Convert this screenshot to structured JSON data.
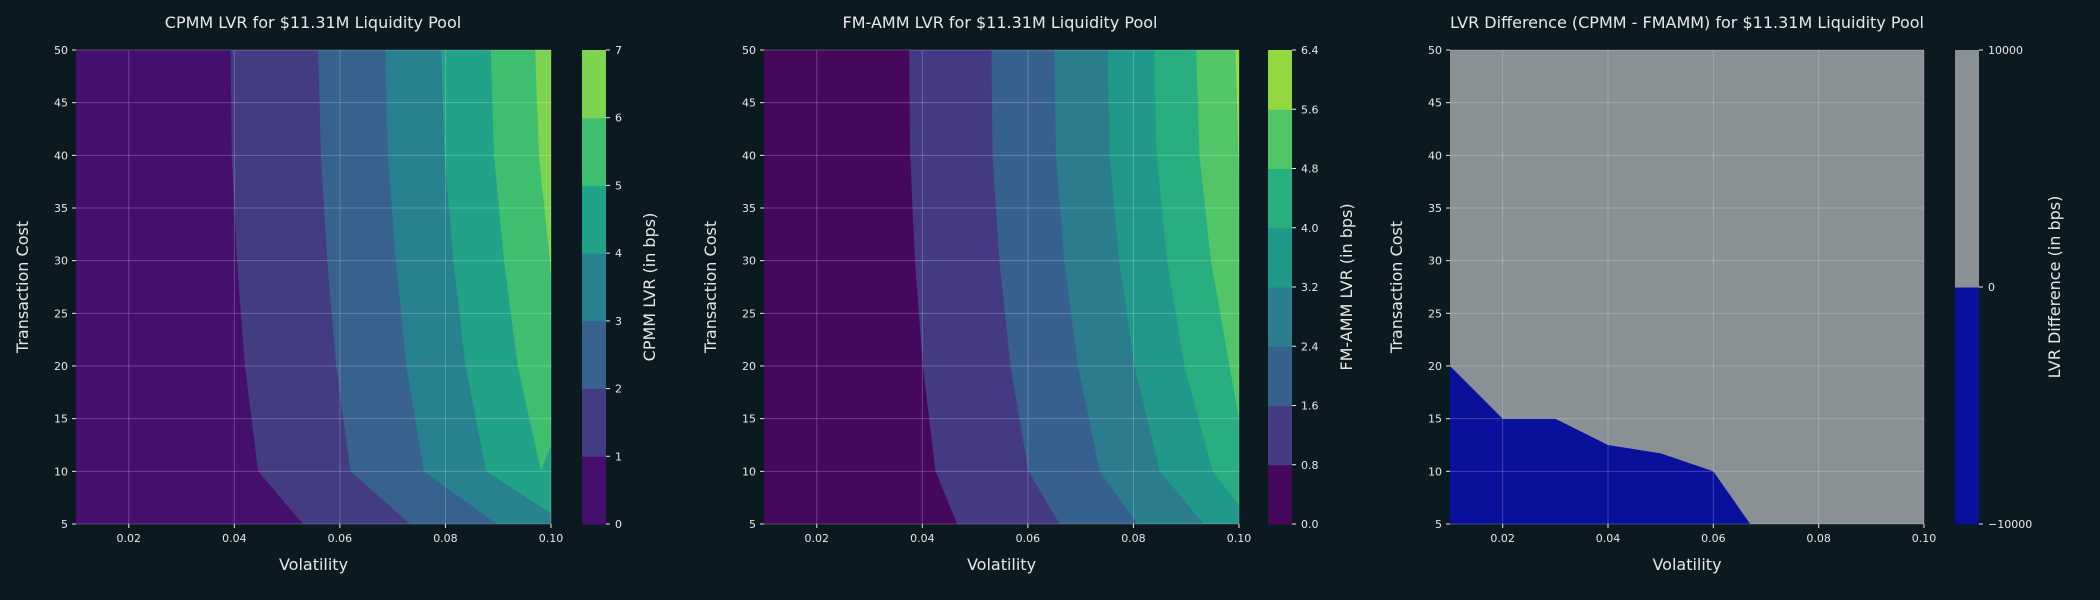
{
  "colors": {
    "background": "#0b1a21",
    "text": "#e8e8e8",
    "grid": "#ffffff",
    "viridis": [
      "#440154",
      "#472d7b",
      "#3b528b",
      "#2c728e",
      "#21918c",
      "#28ae80",
      "#5ec962",
      "#addc30",
      "#fde725"
    ],
    "difference_negative": "#0a0f9c",
    "difference_positive": "#8a9194"
  },
  "chart_data": [
    {
      "type": "contourf",
      "title": "CPMM LVR for $11.31M Liquidity Pool",
      "xlabel": "Volatility",
      "ylabel": "Transaction Cost",
      "xlim": [
        0.01,
        0.1
      ],
      "ylim": [
        5,
        50
      ],
      "xticks": [
        0.02,
        0.04,
        0.06,
        0.08,
        0.1
      ],
      "xtick_labels": [
        "0.02",
        "0.04",
        "0.06",
        "0.08",
        "0.10"
      ],
      "yticks": [
        5,
        10,
        15,
        20,
        25,
        30,
        35,
        40,
        45,
        50
      ],
      "grid": true,
      "colorbar": {
        "label": "CPMM LVR (in bps)",
        "levels": [
          0,
          1,
          2,
          3,
          4,
          5,
          6,
          7
        ],
        "tick_labels": [
          "0",
          "1",
          "2",
          "3",
          "4",
          "5",
          "6",
          "7"
        ],
        "colors": [
          "#440f6d",
          "#433c83",
          "#37628d",
          "#28818e",
          "#22a286",
          "#3ebf6f",
          "#7dd250",
          "#d2e21b"
        ]
      },
      "contours": [
        {
          "level": 1,
          "points": [
            [
              0.0393,
              50
            ],
            [
              0.0395,
              40
            ],
            [
              0.0405,
              30
            ],
            [
              0.042,
              20
            ],
            [
              0.0445,
              10
            ],
            [
              0.053,
              5
            ]
          ]
        },
        {
          "level": 2,
          "points": [
            [
              0.0559,
              50
            ],
            [
              0.0564,
              40
            ],
            [
              0.0576,
              30
            ],
            [
              0.0593,
              20
            ],
            [
              0.062,
              10
            ],
            [
              0.0733,
              5
            ]
          ]
        },
        {
          "level": 3,
          "points": [
            [
              0.0686,
              50
            ],
            [
              0.0691,
              40
            ],
            [
              0.0706,
              30
            ],
            [
              0.0726,
              20
            ],
            [
              0.0759,
              10
            ],
            [
              0.0897,
              5
            ]
          ]
        },
        {
          "level": 4,
          "points": [
            [
              0.0792,
              50
            ],
            [
              0.0798,
              40
            ],
            [
              0.0815,
              30
            ],
            [
              0.0838,
              20
            ],
            [
              0.0877,
              10
            ],
            [
              0.1,
              6.0
            ]
          ]
        },
        {
          "level": 5,
          "points": [
            [
              0.0886,
              50
            ],
            [
              0.0892,
              40
            ],
            [
              0.0911,
              30
            ],
            [
              0.0937,
              20
            ],
            [
              0.0981,
              10
            ],
            [
              0.1,
              12.5
            ]
          ]
        },
        {
          "level": 6,
          "points": [
            [
              0.097,
              50
            ],
            [
              0.0977,
              40
            ],
            [
              0.0998,
              30
            ],
            [
              0.1,
              28.5
            ]
          ]
        }
      ]
    },
    {
      "type": "contourf",
      "title": "FM-AMM LVR for $11.31M Liquidity Pool",
      "xlabel": "Volatility",
      "ylabel": "Transaction Cost",
      "xlim": [
        0.01,
        0.1
      ],
      "ylim": [
        5,
        50
      ],
      "xticks": [
        0.02,
        0.04,
        0.06,
        0.08,
        0.1
      ],
      "xtick_labels": [
        "0.02",
        "0.04",
        "0.06",
        "0.08",
        "0.10"
      ],
      "yticks": [
        5,
        10,
        15,
        20,
        25,
        30,
        35,
        40,
        45,
        50
      ],
      "grid": true,
      "colorbar": {
        "label": "FM-AMM LVR (in bps)",
        "levels": [
          0.0,
          0.8,
          1.6,
          2.4,
          3.2,
          4.0,
          4.8,
          5.6,
          6.4
        ],
        "tick_labels": [
          "0.0",
          "0.8",
          "1.6",
          "2.4",
          "3.2",
          "4.0",
          "4.8",
          "5.6",
          "6.4"
        ],
        "colors": [
          "#46085c",
          "#443a83",
          "#36608d",
          "#2b7d8e",
          "#21998a",
          "#29af7f",
          "#52c569",
          "#93d741",
          "#d8e219"
        ]
      },
      "contours": [
        {
          "level": 0.8,
          "points": [
            [
              0.0375,
              50
            ],
            [
              0.0377,
              40
            ],
            [
              0.0386,
              30
            ],
            [
              0.0401,
              20
            ],
            [
              0.0425,
              10
            ],
            [
              0.0466,
              5
            ]
          ]
        },
        {
          "level": 1.6,
          "points": [
            [
              0.0531,
              50
            ],
            [
              0.0533,
              40
            ],
            [
              0.0546,
              30
            ],
            [
              0.0567,
              20
            ],
            [
              0.0601,
              10
            ],
            [
              0.066,
              5
            ]
          ]
        },
        {
          "level": 2.4,
          "points": [
            [
              0.065,
              50
            ],
            [
              0.0653,
              40
            ],
            [
              0.0669,
              30
            ],
            [
              0.0695,
              20
            ],
            [
              0.0736,
              10
            ],
            [
              0.0808,
              5
            ]
          ]
        },
        {
          "level": 3.2,
          "points": [
            [
              0.0751,
              50
            ],
            [
              0.0755,
              40
            ],
            [
              0.0773,
              30
            ],
            [
              0.0802,
              20
            ],
            [
              0.085,
              10
            ],
            [
              0.0933,
              5
            ]
          ]
        },
        {
          "level": 4.0,
          "points": [
            [
              0.0839,
              50
            ],
            [
              0.0844,
              40
            ],
            [
              0.0864,
              30
            ],
            [
              0.0897,
              20
            ],
            [
              0.095,
              10
            ],
            [
              0.1,
              6.8
            ]
          ]
        },
        {
          "level": 4.8,
          "points": [
            [
              0.0919,
              50
            ],
            [
              0.0925,
              40
            ],
            [
              0.0947,
              30
            ],
            [
              0.0982,
              20
            ],
            [
              0.1,
              15.0
            ]
          ]
        },
        {
          "level": 5.6,
          "points": [
            [
              0.0993,
              50
            ],
            [
              0.0999,
              40
            ],
            [
              0.1,
              38.5
            ]
          ]
        }
      ]
    },
    {
      "type": "contourf",
      "title": "LVR Difference (CPMM - FMAMM) for $11.31M Liquidity Pool",
      "xlabel": "Volatility",
      "ylabel": "Transaction Cost",
      "xlim": [
        0.01,
        0.1
      ],
      "ylim": [
        5,
        50
      ],
      "xticks": [
        0.02,
        0.04,
        0.06,
        0.08,
        0.1
      ],
      "xtick_labels": [
        "0.02",
        "0.04",
        "0.06",
        "0.08",
        "0.10"
      ],
      "yticks": [
        5,
        10,
        15,
        20,
        25,
        30,
        35,
        40,
        45,
        50
      ],
      "grid": true,
      "colorbar": {
        "label": "LVR Difference (in bps)",
        "levels": [
          -10000,
          0,
          10000
        ],
        "tick_labels": [
          "−10000",
          "0",
          "10000"
        ],
        "colors": [
          "#0a0f9c",
          "#8a9194"
        ]
      },
      "boundary": [
        [
          0.01,
          20
        ],
        [
          0.02,
          15
        ],
        [
          0.03,
          15
        ],
        [
          0.04,
          12.5
        ],
        [
          0.05,
          11.7
        ],
        [
          0.06,
          10
        ],
        [
          0.067,
          5
        ]
      ]
    }
  ]
}
